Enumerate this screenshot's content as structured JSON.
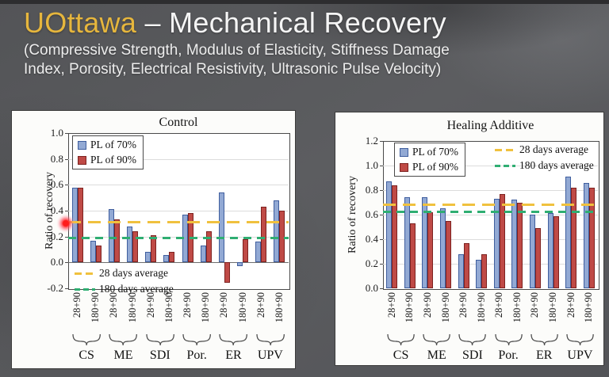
{
  "header": {
    "title_brand": "UOttawa",
    "title_rest": "– Mechanical Recovery",
    "subtitle_line1": "(Compressive Strength, Modulus of Elasticity, Stiffness Damage",
    "subtitle_line2": "Index, Porosity, Electrical Resistivity, Ultrasonic Pulse Velocity)"
  },
  "colors": {
    "brand_gold": "#e6b63d",
    "title_white": "#f5f5f5",
    "panel_bg": "#fcfcfa",
    "bar_blue": "#92a9d4",
    "bar_blue_border": "#3f5e9e",
    "bar_red": "#bf4a46",
    "bar_red_border": "#7d2220",
    "avg_28_yellow": "#f0c13e",
    "avg_180_green": "#2fae72"
  },
  "chart_data": [
    {
      "type": "bar",
      "title": "Control",
      "ylabel": "Ratio of recovery",
      "ylim": [
        -0.2,
        1.0
      ],
      "yticks": [
        1.0,
        0.8,
        0.6,
        0.4,
        0.2,
        0.0,
        -0.2
      ],
      "grid": true,
      "legend_position": "inside-top-left",
      "avg_legend_position": "inside-bottom-left",
      "groups": [
        "CS",
        "ME",
        "SDI",
        "Por.",
        "ER",
        "UPV"
      ],
      "categories": [
        "28+90",
        "180+90",
        "28+90",
        "180+90",
        "28+90",
        "180+90",
        "28+90",
        "180+90",
        "28+90",
        "180+90",
        "28+90",
        "180+90"
      ],
      "series": [
        {
          "name": "PL of 70%",
          "color": "#92a9d4",
          "border": "#3f5e9e",
          "values": [
            0.58,
            0.17,
            0.41,
            0.28,
            0.08,
            0.06,
            0.37,
            0.13,
            0.54,
            -0.03,
            0.16,
            0.48
          ]
        },
        {
          "name": "PL of 90%",
          "color": "#bf4a46",
          "border": "#7d2220",
          "values": [
            0.58,
            0.13,
            0.33,
            0.24,
            0.21,
            0.08,
            0.38,
            0.24,
            -0.16,
            0.18,
            0.43,
            0.4
          ]
        }
      ],
      "avg_lines": [
        {
          "label": "28 days average",
          "value": 0.31,
          "color": "#f0c13e"
        },
        {
          "label": "180 days average",
          "value": 0.19,
          "color": "#2fae72"
        }
      ]
    },
    {
      "type": "bar",
      "title": "Healing Additive",
      "ylabel": "Ratio of recovery",
      "ylim": [
        0.0,
        1.2
      ],
      "yticks": [
        1.2,
        1.0,
        0.8,
        0.6,
        0.4,
        0.2,
        0.0
      ],
      "grid": true,
      "legend_position": "inside-top-left",
      "avg_legend_position": "inside-top-right",
      "groups": [
        "CS",
        "ME",
        "SDI",
        "Por.",
        "ER",
        "UPV"
      ],
      "categories": [
        "28+90",
        "180+90",
        "28+90",
        "180+90",
        "28+90",
        "180+90",
        "28+90",
        "180+90",
        "28+90",
        "180+90",
        "28+90",
        "180+90"
      ],
      "series": [
        {
          "name": "PL of 70%",
          "color": "#92a9d4",
          "border": "#3f5e9e",
          "values": [
            0.87,
            0.74,
            0.74,
            0.65,
            0.28,
            0.23,
            0.73,
            0.72,
            0.6,
            0.61,
            0.91,
            0.86
          ]
        },
        {
          "name": "PL of 90%",
          "color": "#bf4a46",
          "border": "#7d2220",
          "values": [
            0.84,
            0.53,
            0.62,
            0.55,
            0.37,
            0.28,
            0.77,
            0.7,
            0.49,
            0.59,
            0.82,
            0.82
          ]
        }
      ],
      "avg_lines": [
        {
          "label": "28 days average",
          "value": 0.68,
          "color": "#f0c13e"
        },
        {
          "label": "180 days average",
          "value": 0.62,
          "color": "#2fae72"
        }
      ]
    }
  ]
}
